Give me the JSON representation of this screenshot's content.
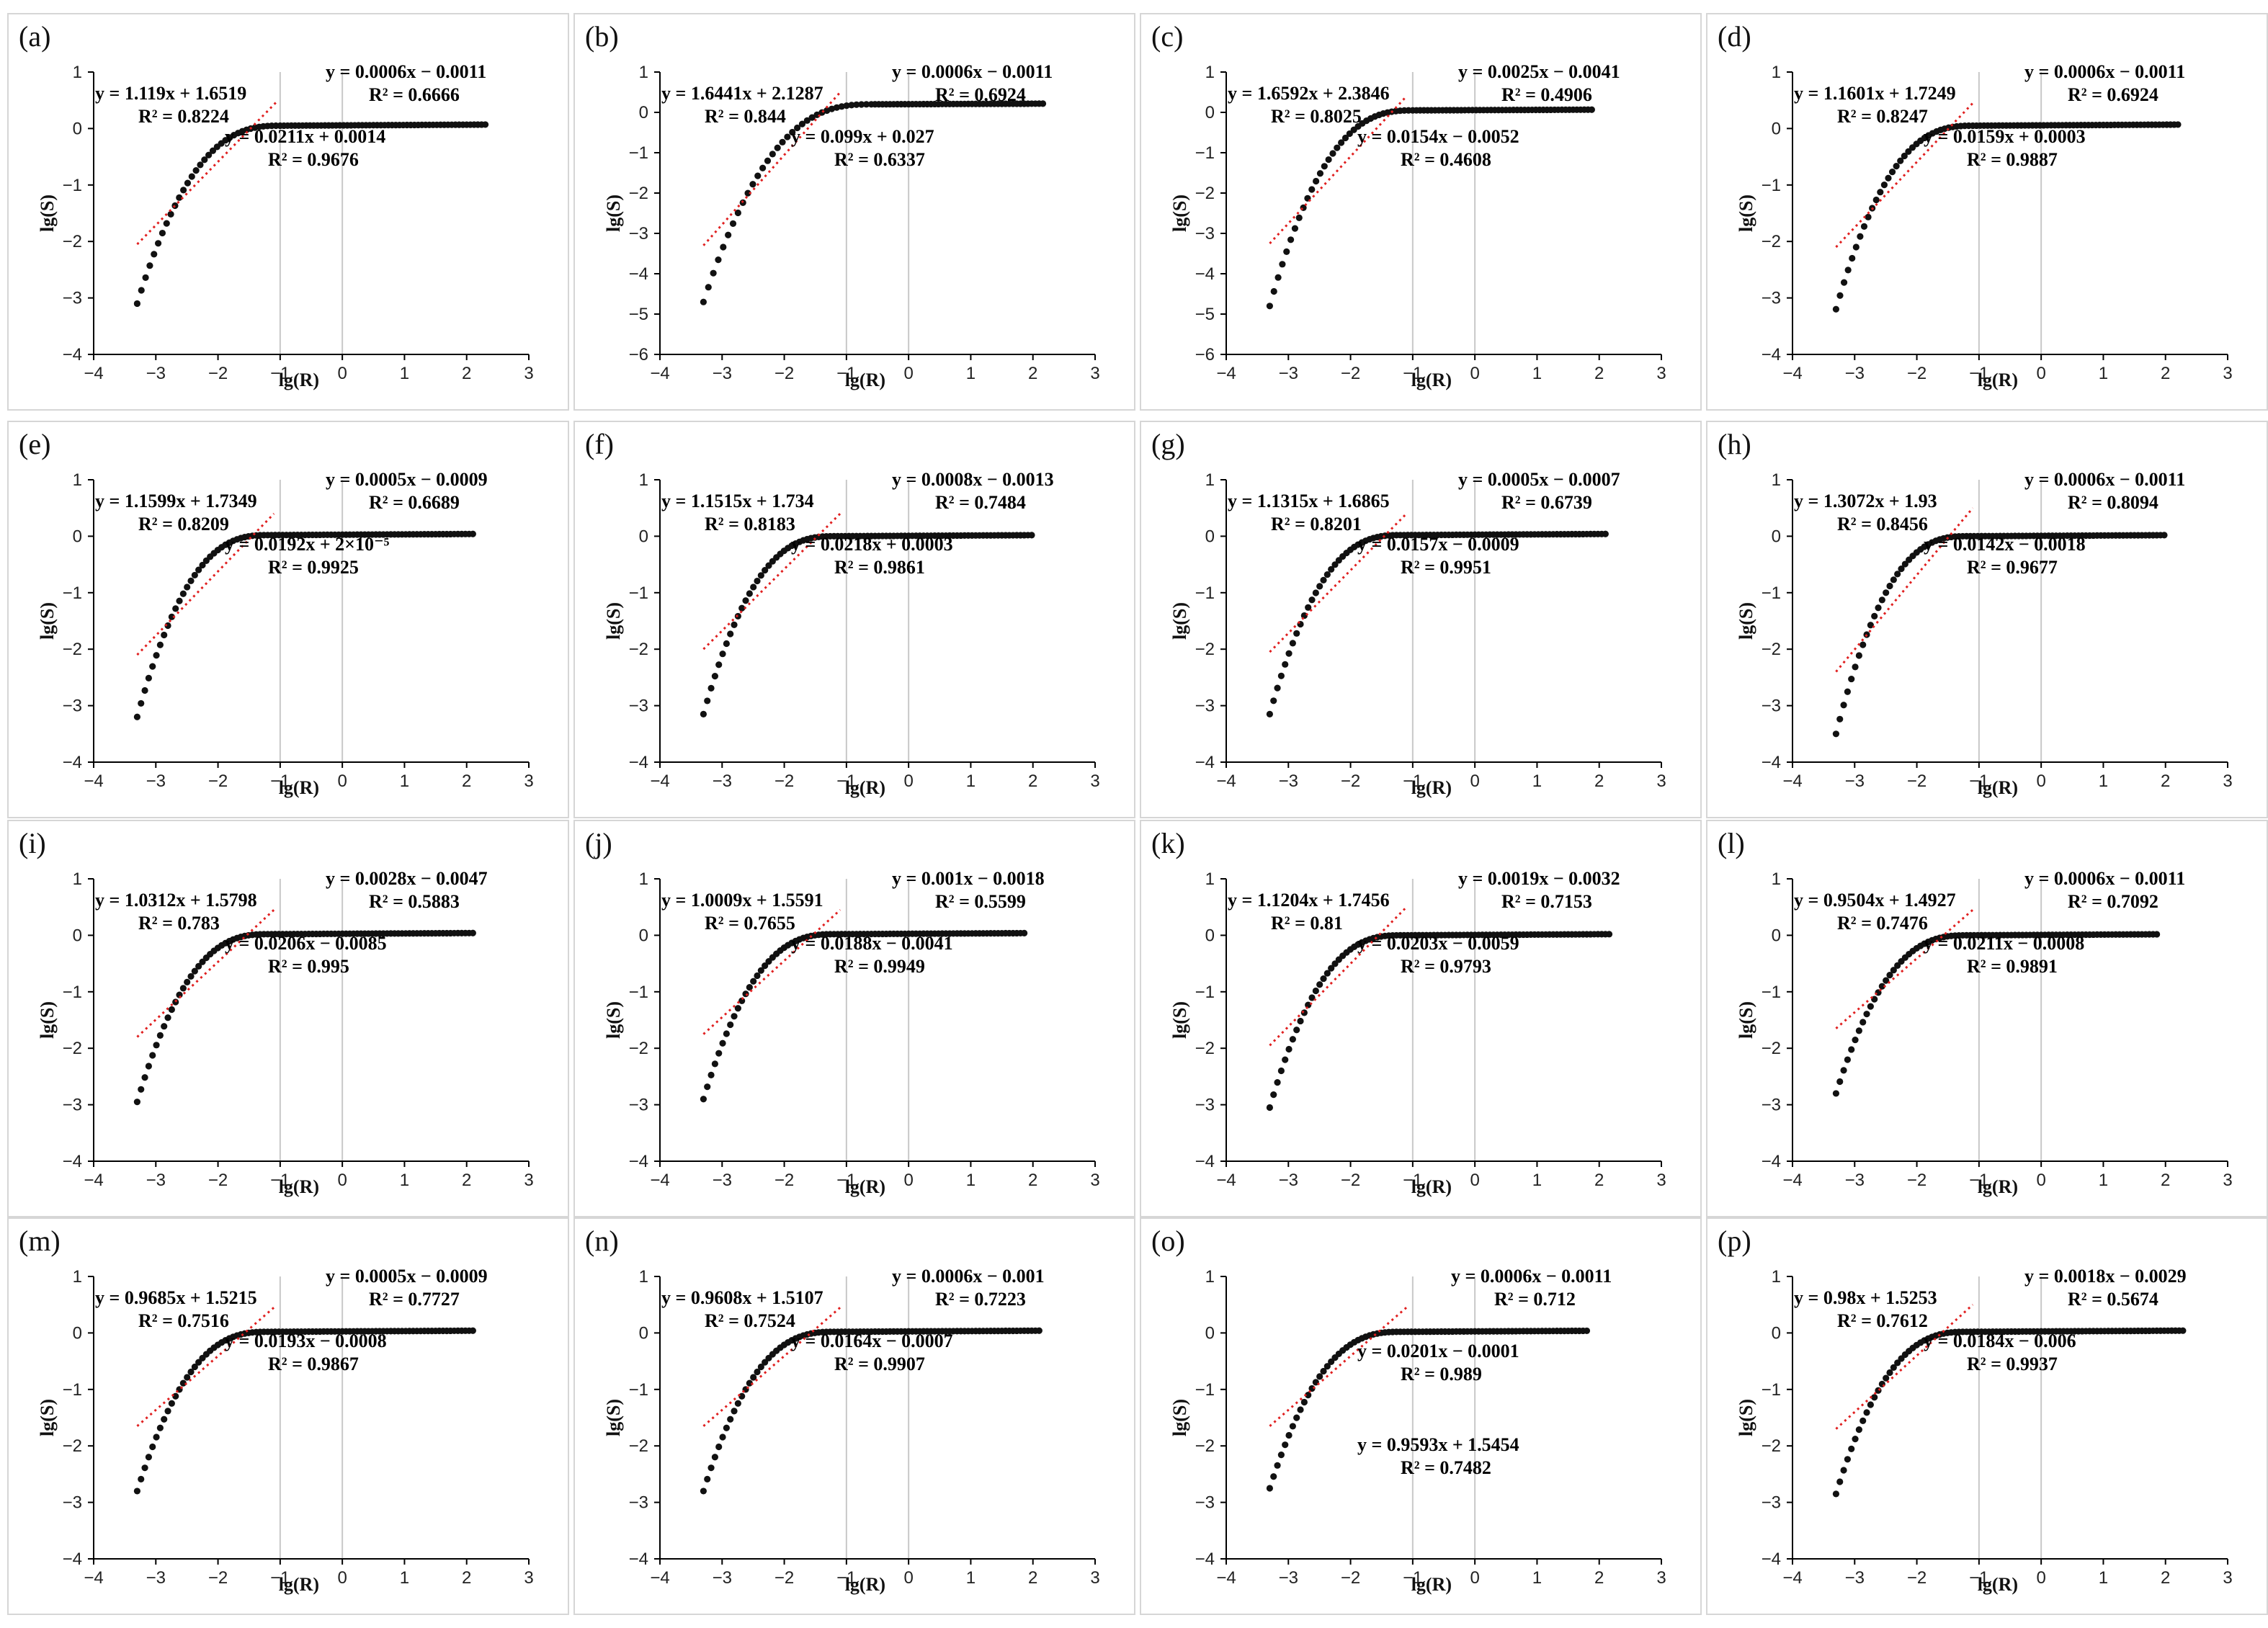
{
  "figure": {
    "axis_titles": {
      "x": "lg(R)",
      "y": "lg(S)"
    },
    "x_ticks": [
      "−4",
      "−3",
      "−2",
      "−1",
      "0",
      "1",
      "2",
      "3"
    ],
    "colors": {
      "points": "#111111",
      "fit_line": "#e02020",
      "grid": "#c8c8c8",
      "axis": "#000000",
      "frame": "#d6d6d6"
    }
  },
  "chart_data": [
    {
      "type": "scatter",
      "panel": "(a)",
      "xlabel": "lg(R)",
      "ylabel": "lg(S)",
      "xlim": [
        -4,
        3
      ],
      "ylim": [
        -4,
        1
      ],
      "y_ticks": [
        "−4",
        "−3",
        "−2",
        "−1",
        "0",
        "1"
      ],
      "x_end": 2.3,
      "min_y": -3.1,
      "plateau_y": 0.05,
      "saturation_x": -1.0,
      "fit_lines": [
        [
          -3.3,
          -2.05
        ],
        [
          -1.05,
          0.48
        ]
      ],
      "eq1": {
        "eq": "y = 1.119x + 1.6519",
        "r2": "R² = 0.8224"
      },
      "eq2": {
        "eq": "y = 0.0211x + 0.0014",
        "r2": "R² = 0.9676"
      },
      "eq3": {
        "eq": "y = 0.0006x − 0.0011",
        "r2": "R² = 0.6666"
      }
    },
    {
      "type": "scatter",
      "panel": "(b)",
      "xlabel": "lg(R)",
      "ylabel": "lg(S)",
      "xlim": [
        -4,
        3
      ],
      "ylim": [
        -6,
        1
      ],
      "y_ticks": [
        "−6",
        "−5",
        "−4",
        "−3",
        "−2",
        "−1",
        "0",
        "1"
      ],
      "x_end": 2.2,
      "min_y": -4.7,
      "plateau_y": 0.2,
      "saturation_x": -0.6,
      "fit_lines": [
        [
          -3.3,
          -3.3
        ],
        [
          -1.1,
          0.5
        ]
      ],
      "eq1": {
        "eq": "y = 1.6441x + 2.1287",
        "r2": "R² = 0.844"
      },
      "eq2": {
        "eq": "y = 0.099x + 0.027",
        "r2": "R² = 0.6337"
      },
      "eq3": {
        "eq": "y = 0.0006x − 0.0011",
        "r2": "R² = 0.6924"
      }
    },
    {
      "type": "scatter",
      "panel": "(c)",
      "xlabel": "lg(R)",
      "ylabel": "lg(S)",
      "xlim": [
        -4,
        3
      ],
      "ylim": [
        -6,
        1
      ],
      "y_ticks": [
        "−6",
        "−5",
        "−4",
        "−3",
        "−2",
        "−1",
        "0",
        "1"
      ],
      "x_end": 1.9,
      "min_y": -4.8,
      "plateau_y": 0.05,
      "saturation_x": -1.0,
      "fit_lines": [
        [
          -3.3,
          -3.25
        ],
        [
          -1.1,
          0.4
        ]
      ],
      "eq1": {
        "eq": "y = 1.6592x + 2.3846",
        "r2": "R² = 0.8025"
      },
      "eq2": {
        "eq": "y = 0.0154x − 0.0052",
        "r2": "R² = 0.4608"
      },
      "eq3": {
        "eq": "y = 0.0025x − 0.0041",
        "r2": "R² = 0.4906"
      }
    },
    {
      "type": "scatter",
      "panel": "(d)",
      "xlabel": "lg(R)",
      "ylabel": "lg(S)",
      "xlim": [
        -4,
        3
      ],
      "ylim": [
        -4,
        1
      ],
      "y_ticks": [
        "−4",
        "−3",
        "−2",
        "−1",
        "0",
        "1"
      ],
      "x_end": 2.2,
      "min_y": -3.2,
      "plateau_y": 0.05,
      "saturation_x": -1.1,
      "fit_lines": [
        [
          -3.3,
          -2.1
        ],
        [
          -1.1,
          0.45
        ]
      ],
      "eq1": {
        "eq": "y = 1.1601x + 1.7249",
        "r2": "R² = 0.8247"
      },
      "eq2": {
        "eq": "y = 0.0159x + 0.0003",
        "r2": "R² = 0.9887"
      },
      "eq3": {
        "eq": "y = 0.0006x − 0.0011",
        "r2": "R² = 0.6924"
      }
    },
    {
      "type": "scatter",
      "panel": "(e)",
      "xlabel": "lg(R)",
      "ylabel": "lg(S)",
      "xlim": [
        -4,
        3
      ],
      "ylim": [
        -4,
        1
      ],
      "y_ticks": [
        "−4",
        "−3",
        "−2",
        "−1",
        "0",
        "1"
      ],
      "x_end": 2.1,
      "min_y": -3.2,
      "plateau_y": 0.02,
      "saturation_x": -1.2,
      "fit_lines": [
        [
          -3.3,
          -2.1
        ],
        [
          -1.1,
          0.4
        ]
      ],
      "eq1": {
        "eq": "y = 1.1599x + 1.7349",
        "r2": "R² = 0.8209"
      },
      "eq2": {
        "eq": "y = 0.0192x + 2×10⁻⁵",
        "r2": "R² = 0.9925"
      },
      "eq3": {
        "eq": "y = 0.0005x − 0.0009",
        "r2": "R² = 0.6689"
      }
    },
    {
      "type": "scatter",
      "panel": "(f)",
      "xlabel": "lg(R)",
      "ylabel": "lg(S)",
      "xlim": [
        -4,
        3
      ],
      "ylim": [
        -4,
        1
      ],
      "y_ticks": [
        "−4",
        "−3",
        "−2",
        "−1",
        "0",
        "1"
      ],
      "x_end": 2.0,
      "min_y": -3.15,
      "plateau_y": 0.0,
      "saturation_x": -1.2,
      "fit_lines": [
        [
          -3.3,
          -2.0
        ],
        [
          -1.1,
          0.4
        ]
      ],
      "eq1": {
        "eq": "y = 1.1515x + 1.734",
        "r2": "R² = 0.8183"
      },
      "eq2": {
        "eq": "y = 0.0218x + 0.0003",
        "r2": "R² = 0.9861"
      },
      "eq3": {
        "eq": "y = 0.0008x − 0.0013",
        "r2": "R² = 0.7484"
      }
    },
    {
      "type": "scatter",
      "panel": "(g)",
      "xlabel": "lg(R)",
      "ylabel": "lg(S)",
      "xlim": [
        -4,
        3
      ],
      "ylim": [
        -4,
        1
      ],
      "y_ticks": [
        "−4",
        "−3",
        "−2",
        "−1",
        "0",
        "1"
      ],
      "x_end": 2.1,
      "min_y": -3.15,
      "plateau_y": 0.02,
      "saturation_x": -1.2,
      "fit_lines": [
        [
          -3.3,
          -2.05
        ],
        [
          -1.1,
          0.4
        ]
      ],
      "eq1": {
        "eq": "y = 1.1315x + 1.6865",
        "r2": "R² = 0.8201"
      },
      "eq2": {
        "eq": "y = 0.0157x − 0.0009",
        "r2": "R² = 0.9951"
      },
      "eq3": {
        "eq": "y = 0.0005x − 0.0007",
        "r2": "R² = 0.6739"
      }
    },
    {
      "type": "scatter",
      "panel": "(h)",
      "xlabel": "lg(R)",
      "ylabel": "lg(S)",
      "xlim": [
        -4,
        3
      ],
      "ylim": [
        -4,
        1
      ],
      "y_ticks": [
        "−4",
        "−3",
        "−2",
        "−1",
        "0",
        "1"
      ],
      "x_end": 2.0,
      "min_y": -3.5,
      "plateau_y": 0.0,
      "saturation_x": -1.2,
      "fit_lines": [
        [
          -3.3,
          -2.4
        ],
        [
          -1.1,
          0.5
        ]
      ],
      "eq1": {
        "eq": "y = 1.3072x + 1.93",
        "r2": "R² = 0.8456"
      },
      "eq2": {
        "eq": "y = 0.0142x − 0.0018",
        "r2": "R² = 0.9677"
      },
      "eq3": {
        "eq": "y = 0.0006x − 0.0011",
        "r2": "R² = 0.8094"
      }
    },
    {
      "type": "scatter",
      "panel": "(i)",
      "xlabel": "lg(R)",
      "ylabel": "lg(S)",
      "xlim": [
        -4,
        3
      ],
      "ylim": [
        -4,
        1
      ],
      "y_ticks": [
        "−4",
        "−3",
        "−2",
        "−1",
        "0",
        "1"
      ],
      "x_end": 2.1,
      "min_y": -2.95,
      "plateau_y": 0.02,
      "saturation_x": -1.2,
      "fit_lines": [
        [
          -3.3,
          -1.8
        ],
        [
          -1.1,
          0.45
        ]
      ],
      "eq1": {
        "eq": "y = 1.0312x + 1.5798",
        "r2": "R² = 0.783"
      },
      "eq2": {
        "eq": "y = 0.0206x − 0.0085",
        "r2": "R² = 0.995"
      },
      "eq3": {
        "eq": "y = 0.0028x − 0.0047",
        "r2": "R² = 0.5883"
      }
    },
    {
      "type": "scatter",
      "panel": "(j)",
      "xlabel": "lg(R)",
      "ylabel": "lg(S)",
      "xlim": [
        -4,
        3
      ],
      "ylim": [
        -4,
        1
      ],
      "y_ticks": [
        "−4",
        "−3",
        "−2",
        "−1",
        "0",
        "1"
      ],
      "x_end": 1.9,
      "min_y": -2.9,
      "plateau_y": 0.02,
      "saturation_x": -1.2,
      "fit_lines": [
        [
          -3.3,
          -1.75
        ],
        [
          -1.1,
          0.45
        ]
      ],
      "eq1": {
        "eq": "y = 1.0009x + 1.5591",
        "r2": "R² = 0.7655"
      },
      "eq2": {
        "eq": "y = 0.0188x − 0.0041",
        "r2": "R² = 0.9949"
      },
      "eq3": {
        "eq": "y = 0.001x − 0.0018",
        "r2": "R² = 0.5599"
      }
    },
    {
      "type": "scatter",
      "panel": "(k)",
      "xlabel": "lg(R)",
      "ylabel": "lg(S)",
      "xlim": [
        -4,
        3
      ],
      "ylim": [
        -4,
        1
      ],
      "y_ticks": [
        "−4",
        "−3",
        "−2",
        "−1",
        "0",
        "1"
      ],
      "x_end": 2.2,
      "min_y": -3.05,
      "plateau_y": 0.0,
      "saturation_x": -1.2,
      "fit_lines": [
        [
          -3.3,
          -1.95
        ],
        [
          -1.1,
          0.5
        ]
      ],
      "eq1": {
        "eq": "y = 1.1204x + 1.7456",
        "r2": "R² = 0.81"
      },
      "eq2": {
        "eq": "y = 0.0203x − 0.0059",
        "r2": "R² = 0.9793"
      },
      "eq3": {
        "eq": "y = 0.0019x − 0.0032",
        "r2": "R² = 0.7153"
      }
    },
    {
      "type": "scatter",
      "panel": "(l)",
      "xlabel": "lg(R)",
      "ylabel": "lg(S)",
      "xlim": [
        -4,
        3
      ],
      "ylim": [
        -4,
        1
      ],
      "y_ticks": [
        "−4",
        "−3",
        "−2",
        "−1",
        "0",
        "1"
      ],
      "x_end": 1.9,
      "min_y": -2.8,
      "plateau_y": 0.0,
      "saturation_x": -1.2,
      "fit_lines": [
        [
          -3.3,
          -1.65
        ],
        [
          -1.1,
          0.45
        ]
      ],
      "eq1": {
        "eq": "y = 0.9504x + 1.4927",
        "r2": "R² = 0.7476"
      },
      "eq2": {
        "eq": "y = 0.0211x − 0.0008",
        "r2": "R² = 0.9891"
      },
      "eq3": {
        "eq": "y = 0.0006x − 0.0011",
        "r2": "R² = 0.7092"
      }
    },
    {
      "type": "scatter",
      "panel": "(m)",
      "xlabel": "lg(R)",
      "ylabel": "lg(S)",
      "xlim": [
        -4,
        3
      ],
      "ylim": [
        -4,
        1
      ],
      "y_ticks": [
        "−4",
        "−3",
        "−2",
        "−1",
        "0",
        "1"
      ],
      "x_end": 2.1,
      "min_y": -2.8,
      "plateau_y": 0.02,
      "saturation_x": -1.2,
      "fit_lines": [
        [
          -3.3,
          -1.65
        ],
        [
          -1.1,
          0.45
        ]
      ],
      "eq1": {
        "eq": "y = 0.9685x + 1.5215",
        "r2": "R² = 0.7516"
      },
      "eq2": {
        "eq": "y = 0.0193x − 0.0008",
        "r2": "R² = 0.9867"
      },
      "eq3": {
        "eq": "y = 0.0005x − 0.0009",
        "r2": "R² = 0.7727"
      }
    },
    {
      "type": "scatter",
      "panel": "(n)",
      "xlabel": "lg(R)",
      "ylabel": "lg(S)",
      "xlim": [
        -4,
        3
      ],
      "ylim": [
        -4,
        1
      ],
      "y_ticks": [
        "−4",
        "−3",
        "−2",
        "−1",
        "0",
        "1"
      ],
      "x_end": 2.1,
      "min_y": -2.8,
      "plateau_y": 0.02,
      "saturation_x": -1.2,
      "fit_lines": [
        [
          -3.3,
          -1.65
        ],
        [
          -1.1,
          0.45
        ]
      ],
      "eq1": {
        "eq": "y = 0.9608x + 1.5107",
        "r2": "R² = 0.7524"
      },
      "eq2": {
        "eq": "y = 0.0164x − 0.0007",
        "r2": "R² = 0.9907"
      },
      "eq3": {
        "eq": "y = 0.0006x − 0.001",
        "r2": "R² = 0.7223"
      }
    },
    {
      "type": "scatter",
      "panel": "(o)",
      "xlabel": "lg(R)",
      "ylabel": "lg(S)",
      "xlim": [
        -4,
        3
      ],
      "ylim": [
        -4,
        1
      ],
      "y_ticks": [
        "−4",
        "−3",
        "−2",
        "−1",
        "0",
        "1"
      ],
      "x_end": 1.8,
      "min_y": -2.75,
      "plateau_y": 0.02,
      "saturation_x": -1.2,
      "fit_lines": [
        [
          -3.3,
          -1.65
        ],
        [
          -1.1,
          0.45
        ]
      ],
      "eq1": {
        "eq": "y = 0.9593x + 1.5454",
        "r2": "R² = 0.7482"
      },
      "eq2": {
        "eq": "y = 0.0201x − 0.0001",
        "r2": "R² = 0.989"
      },
      "eq3": {
        "eq": "y = 0.0006x − 0.0011",
        "r2": "R² = 0.712"
      }
    },
    {
      "type": "scatter",
      "panel": "(p)",
      "xlabel": "lg(R)",
      "ylabel": "lg(S)",
      "xlim": [
        -4,
        3
      ],
      "ylim": [
        -4,
        1
      ],
      "y_ticks": [
        "−4",
        "−3",
        "−2",
        "−1",
        "0",
        "1"
      ],
      "x_end": 2.3,
      "min_y": -2.85,
      "plateau_y": 0.02,
      "saturation_x": -1.2,
      "fit_lines": [
        [
          -3.3,
          -1.7
        ],
        [
          -1.1,
          0.5
        ]
      ],
      "eq1": {
        "eq": "y = 0.98x + 1.5253",
        "r2": "R² = 0.7612"
      },
      "eq2": {
        "eq": "y = 0.0184x − 0.006",
        "r2": "R² = 0.9937"
      },
      "eq3": {
        "eq": "y = 0.0018x − 0.0029",
        "r2": "R² = 0.5674"
      }
    }
  ]
}
